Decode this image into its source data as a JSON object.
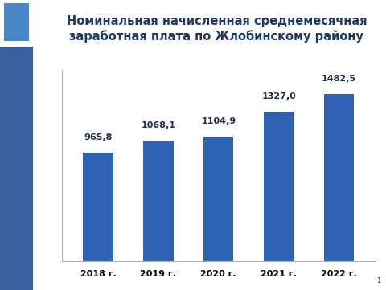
{
  "chart_data": {
    "type": "bar",
    "title": "Номинальная начисленная среднемесячная заработная плата по Жлобинскому району",
    "categories": [
      "2018 г.",
      "2019 г.",
      "2020 г.",
      "2021 г.",
      "2022 г."
    ],
    "values": [
      965.8,
      1068.1,
      1104.9,
      1327.0,
      1482.5
    ],
    "value_labels": [
      "965,8",
      "1068,1",
      "1104,9",
      "1327,0",
      "1482,5"
    ],
    "data_labels": true,
    "color": "#2f62b5",
    "ylim": [
      0,
      1700
    ],
    "yticks": [],
    "grid": false,
    "tick_labels": "x"
  },
  "footer": "1"
}
